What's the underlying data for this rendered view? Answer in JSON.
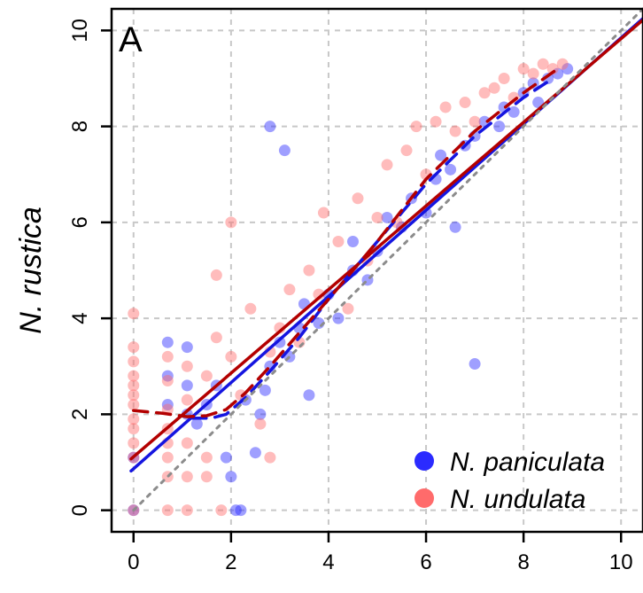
{
  "chart_data": {
    "type": "scatter",
    "panel_label": "A",
    "title": "",
    "xlabel": "",
    "ylabel": "N. rustica",
    "xlim": [
      -0.45,
      10.45
    ],
    "ylim": [
      -0.45,
      10.45
    ],
    "x_ticks": [
      0,
      2,
      4,
      6,
      8,
      10
    ],
    "y_ticks": [
      0,
      2,
      4,
      6,
      8,
      10
    ],
    "grid": true,
    "legend_position": "bottom-right",
    "colors": {
      "paniculata_points": "#2b2bff",
      "undulata_points": "#ff6b6b",
      "paniculata_line": "#1515e0",
      "undulata_line": "#b30000",
      "identity_line": "#8c8c8c",
      "grid": "#c8c8c8"
    },
    "series": [
      {
        "name": "N. paniculata",
        "points": [
          [
            0,
            1.1
          ],
          [
            0,
            0
          ],
          [
            0.7,
            3.5
          ],
          [
            0.7,
            2.8
          ],
          [
            0.7,
            2.2
          ],
          [
            1.1,
            3.4
          ],
          [
            1.1,
            2.6
          ],
          [
            1.1,
            2.0
          ],
          [
            1.3,
            1.8
          ],
          [
            1.5,
            2.2
          ],
          [
            1.7,
            2.6
          ],
          [
            1.9,
            1.1
          ],
          [
            2.0,
            0.7
          ],
          [
            2.1,
            0
          ],
          [
            2.2,
            0
          ],
          [
            2.3,
            2.3
          ],
          [
            2.5,
            1.2
          ],
          [
            2.6,
            2.0
          ],
          [
            2.7,
            2.5
          ],
          [
            2.8,
            3.0
          ],
          [
            2.8,
            8.0
          ],
          [
            3.0,
            3.5
          ],
          [
            3.1,
            7.5
          ],
          [
            3.2,
            3.2
          ],
          [
            3.4,
            3.8
          ],
          [
            3.5,
            4.3
          ],
          [
            3.6,
            2.4
          ],
          [
            3.8,
            3.9
          ],
          [
            4.0,
            4.5
          ],
          [
            4.2,
            4.0
          ],
          [
            4.5,
            5.6
          ],
          [
            4.5,
            5.0
          ],
          [
            4.8,
            4.8
          ],
          [
            5.0,
            5.4
          ],
          [
            5.2,
            6.1
          ],
          [
            5.5,
            5.9
          ],
          [
            5.7,
            6.5
          ],
          [
            6.0,
            6.2
          ],
          [
            6.2,
            6.9
          ],
          [
            6.3,
            7.4
          ],
          [
            6.5,
            7.1
          ],
          [
            6.6,
            5.9
          ],
          [
            6.8,
            7.6
          ],
          [
            7.0,
            3.05
          ],
          [
            7.0,
            7.8
          ],
          [
            7.2,
            8.1
          ],
          [
            7.5,
            8.0
          ],
          [
            7.6,
            8.4
          ],
          [
            7.8,
            8.3
          ],
          [
            8.0,
            8.7
          ],
          [
            8.2,
            8.9
          ],
          [
            8.3,
            8.5
          ],
          [
            8.5,
            9.0
          ],
          [
            8.7,
            9.1
          ],
          [
            8.9,
            9.2
          ]
        ]
      },
      {
        "name": "N. undulata",
        "points": [
          [
            0,
            4.1
          ],
          [
            0,
            3.4
          ],
          [
            0,
            3.1
          ],
          [
            0,
            2.8
          ],
          [
            0,
            2.6
          ],
          [
            0,
            2.4
          ],
          [
            0,
            2.2
          ],
          [
            0,
            1.9
          ],
          [
            0,
            1.7
          ],
          [
            0,
            1.4
          ],
          [
            0,
            1.1
          ],
          [
            0,
            0
          ],
          [
            0.7,
            3.2
          ],
          [
            0.7,
            2.7
          ],
          [
            0.7,
            2.1
          ],
          [
            0.7,
            1.7
          ],
          [
            0.7,
            1.4
          ],
          [
            0.7,
            1.1
          ],
          [
            0.7,
            0.7
          ],
          [
            0.7,
            0
          ],
          [
            1.1,
            3.0
          ],
          [
            1.1,
            2.3
          ],
          [
            1.1,
            1.4
          ],
          [
            1.1,
            0.7
          ],
          [
            1.1,
            0
          ],
          [
            1.5,
            2.8
          ],
          [
            1.5,
            1.1
          ],
          [
            1.5,
            0.7
          ],
          [
            1.7,
            3.6
          ],
          [
            1.7,
            4.9
          ],
          [
            1.8,
            0
          ],
          [
            2.0,
            6.0
          ],
          [
            2.0,
            3.2
          ],
          [
            2.2,
            2.4
          ],
          [
            2.4,
            4.2
          ],
          [
            2.6,
            1.8
          ],
          [
            2.8,
            3.3
          ],
          [
            2.8,
            1.1
          ],
          [
            3.0,
            3.8
          ],
          [
            3.2,
            4.6
          ],
          [
            3.4,
            3.5
          ],
          [
            3.6,
            5.0
          ],
          [
            3.8,
            4.5
          ],
          [
            3.9,
            6.2
          ],
          [
            4.2,
            5.6
          ],
          [
            4.4,
            4.2
          ],
          [
            4.6,
            6.5
          ],
          [
            4.8,
            5.2
          ],
          [
            5.0,
            6.1
          ],
          [
            5.2,
            7.2
          ],
          [
            5.4,
            6.0
          ],
          [
            5.6,
            7.5
          ],
          [
            5.8,
            8.0
          ],
          [
            6.0,
            7.0
          ],
          [
            6.2,
            8.1
          ],
          [
            6.4,
            8.4
          ],
          [
            6.6,
            7.9
          ],
          [
            6.8,
            8.5
          ],
          [
            7.0,
            8.1
          ],
          [
            7.2,
            8.7
          ],
          [
            7.4,
            8.8
          ],
          [
            7.6,
            9.0
          ],
          [
            7.8,
            8.6
          ],
          [
            8.0,
            9.2
          ],
          [
            8.2,
            9.1
          ],
          [
            8.4,
            9.3
          ],
          [
            8.6,
            9.2
          ],
          [
            8.8,
            9.3
          ]
        ]
      }
    ],
    "lines": [
      {
        "series": "N. paniculata",
        "style": "solid",
        "points": [
          [
            -0.05,
            0.82
          ],
          [
            10.45,
            10.25
          ]
        ]
      },
      {
        "series": "N. undulata",
        "style": "solid",
        "points": [
          [
            -0.05,
            1.07
          ],
          [
            10.45,
            10.22
          ]
        ]
      },
      {
        "series": "N. paniculata",
        "style": "dashed",
        "points": [
          [
            1.2,
            1.92
          ],
          [
            1.6,
            1.92
          ],
          [
            1.9,
            2.0
          ],
          [
            2.3,
            2.35
          ],
          [
            2.8,
            2.9
          ],
          [
            3.4,
            3.6
          ],
          [
            4.0,
            4.4
          ],
          [
            5.0,
            5.6
          ],
          [
            6.0,
            6.8
          ],
          [
            7.0,
            7.8
          ],
          [
            8.0,
            8.6
          ],
          [
            8.6,
            9.0
          ]
        ]
      },
      {
        "series": "N. undulata",
        "style": "dashed",
        "points": [
          [
            0,
            2.08
          ],
          [
            0.6,
            2.02
          ],
          [
            1.1,
            1.95
          ],
          [
            1.5,
            1.97
          ],
          [
            1.9,
            2.1
          ],
          [
            2.3,
            2.45
          ],
          [
            2.8,
            3.0
          ],
          [
            3.4,
            3.7
          ],
          [
            4.0,
            4.4
          ],
          [
            5.0,
            5.6
          ],
          [
            6.0,
            6.9
          ],
          [
            7.0,
            7.9
          ],
          [
            8.0,
            8.7
          ],
          [
            8.7,
            9.2
          ]
        ]
      },
      {
        "series": "identity",
        "style": "dotted",
        "points": [
          [
            0,
            0
          ],
          [
            10.45,
            10.45
          ]
        ]
      }
    ]
  }
}
